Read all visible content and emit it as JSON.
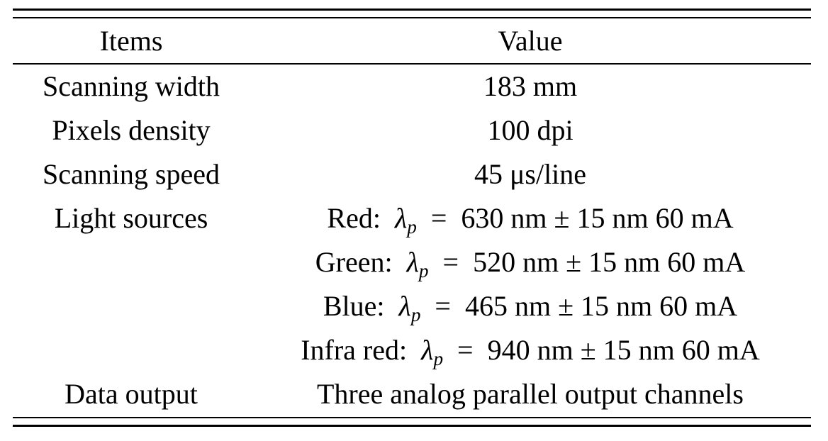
{
  "table": {
    "headers": {
      "items": "Items",
      "value": "Value"
    },
    "rows": [
      {
        "item": "Scanning width",
        "value": "183 mm"
      },
      {
        "item": "Pixels density",
        "value": "100 dpi"
      },
      {
        "item": "Scanning speed",
        "value": "45 μs/line"
      },
      {
        "item": "Light sources",
        "value_label": "Red:",
        "value_formula": "630 nm ± 15 nm 60 mA"
      },
      {
        "item": "",
        "value_label": "Green:",
        "value_formula": "520 nm ± 15 nm 60 mA"
      },
      {
        "item": "",
        "value_label": "Blue:",
        "value_formula": "465 nm ± 15 nm 60 mA"
      },
      {
        "item": "",
        "value_label": "Infra red:",
        "value_formula": "940 nm ± 15 nm 60 mA"
      },
      {
        "item": "Data output",
        "value": "Three analog parallel output channels"
      }
    ]
  }
}
